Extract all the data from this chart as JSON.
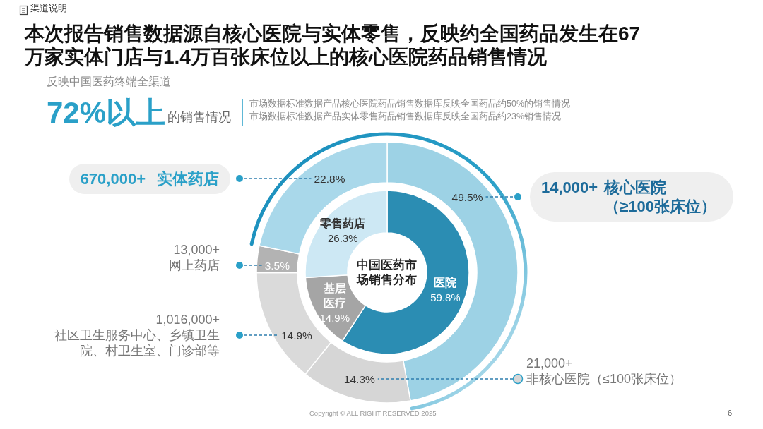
{
  "chart_data": [
    {
      "type": "donut",
      "title": "本次报告销售数据源自核心医院与实体零售，反映约全国药品发生在67万家实体门店与1.4万百张床位以上的核心医院药品销售情况",
      "categories": [
        "医院",
        "基层医疗",
        "零售药店"
      ],
      "values": [
        59.8,
        14.9,
        26.3
      ],
      "colors": [
        "#2b8db3",
        "#a5a5a5",
        "#cde8f4"
      ],
      "value_labels": [
        "59.8%",
        "14.9%",
        "26.3%"
      ],
      "annotations": [
        "渠道说明",
        "反映中国医药终端全渠道",
        "72%以上",
        "的销售情况",
        "市场数据标准数据产品核心医院药品销售数据库反映全国药品约50%的销售情况",
        "市场数据标准数据产品实体零售药品销售数据库反映全国药品约23%销售情况",
        "中国医药市场销售分布",
        "Copyright © ALL RIGHT RESERVED 2025",
        "6"
      ]
    },
    {
      "type": "donut",
      "categories": [
        "核心医院（≥100张床位）",
        "非核心医院（≤100张床位）",
        "社区卫生服务中心、乡镇卫生院、村卫生室、门诊部等",
        "网上药店",
        "实体药店"
      ],
      "values": [
        49.5,
        14.3,
        14.9,
        3.5,
        22.8
      ],
      "colors": [
        "#9dd2e5",
        "#d6d6d6",
        "#dadada",
        "#b3b3b3",
        "#a9d8ea"
      ],
      "value_labels": [
        "49.5%",
        "14.3%",
        "14.9%",
        "3.5%",
        "22.8%"
      ],
      "annotations": [
        "14,000+",
        "21,000+",
        "1,016,000+",
        "13,000+",
        "670,000+"
      ]
    }
  ]
}
